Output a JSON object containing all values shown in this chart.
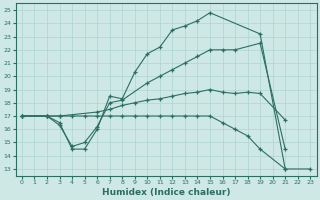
{
  "xlabel": "Humidex (Indice chaleur)",
  "bg_color": "#cde8e5",
  "line_color": "#2d6e63",
  "grid_color": "#b0d4d0",
  "xlim": [
    -0.5,
    23.5
  ],
  "ylim": [
    12.5,
    25.5
  ],
  "xticks": [
    0,
    1,
    2,
    3,
    4,
    5,
    6,
    7,
    8,
    9,
    10,
    11,
    12,
    13,
    14,
    15,
    16,
    17,
    18,
    19,
    20,
    21,
    22,
    23
  ],
  "yticks": [
    13,
    14,
    15,
    16,
    17,
    18,
    19,
    20,
    21,
    22,
    23,
    24,
    25
  ],
  "lines": [
    {
      "x": [
        0,
        2,
        3,
        4,
        5,
        6,
        7,
        8,
        9,
        10,
        11,
        12,
        13,
        14,
        15,
        19,
        21
      ],
      "y": [
        17,
        17,
        16.5,
        14.5,
        14.5,
        16.0,
        18.5,
        18.3,
        20.3,
        21.7,
        22.2,
        23.5,
        23.8,
        24.2,
        24.8,
        23.2,
        13.0
      ]
    },
    {
      "x": [
        0,
        2,
        3,
        4,
        5,
        6,
        7,
        8,
        10,
        11,
        12,
        13,
        14,
        15,
        16,
        17,
        19,
        21
      ],
      "y": [
        17,
        17,
        16.3,
        14.7,
        15.0,
        16.2,
        18.0,
        18.2,
        19.5,
        20.0,
        20.5,
        21.0,
        21.5,
        22.0,
        22.0,
        22.0,
        22.5,
        14.5
      ]
    },
    {
      "x": [
        0,
        2,
        3,
        6,
        7,
        8,
        9,
        10,
        11,
        12,
        13,
        14,
        15,
        16,
        17,
        18,
        19,
        21
      ],
      "y": [
        17,
        17,
        17,
        17.3,
        17.5,
        17.8,
        18.0,
        18.2,
        18.3,
        18.5,
        18.7,
        18.8,
        19.0,
        18.8,
        18.7,
        18.8,
        18.7,
        16.7
      ]
    },
    {
      "x": [
        0,
        2,
        3,
        4,
        5,
        6,
        7,
        8,
        9,
        10,
        11,
        12,
        13,
        14,
        15,
        16,
        17,
        18,
        19,
        21,
        23
      ],
      "y": [
        17,
        17,
        17,
        17,
        17,
        17,
        17,
        17,
        17,
        17,
        17,
        17,
        17,
        17,
        17,
        16.5,
        16.0,
        15.5,
        14.5,
        13.0,
        13.0
      ]
    }
  ]
}
